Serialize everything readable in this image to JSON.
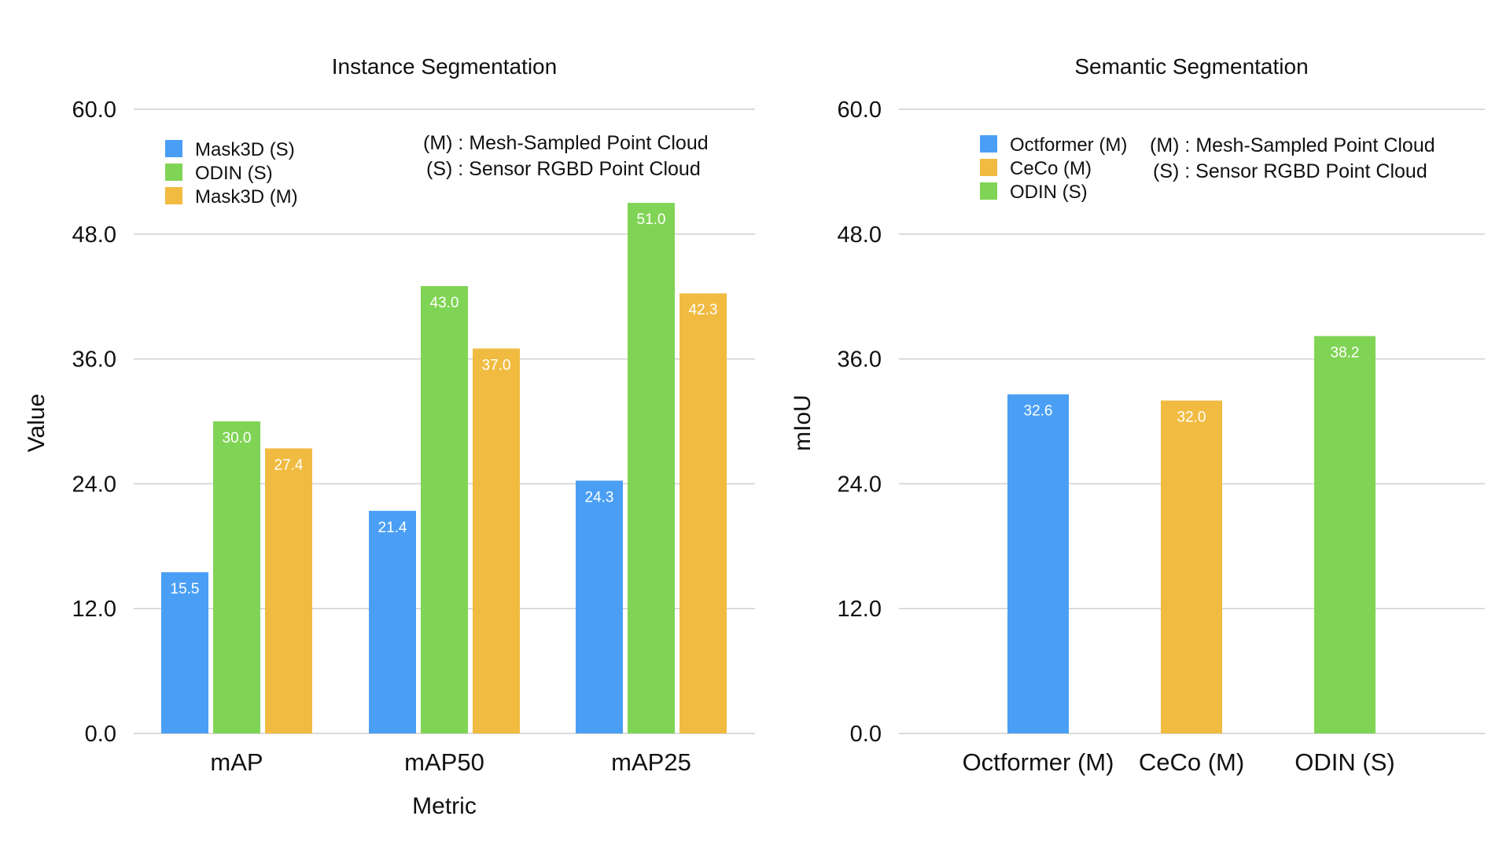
{
  "colors": {
    "blue": "#4a9ff5",
    "green": "#80d455",
    "orange": "#f0bb40",
    "grid": "#cfcfcf",
    "text": "#111111",
    "label": "#ffffff"
  },
  "chart_data": [
    {
      "type": "bar",
      "title": "Instance Segmentation",
      "xlabel": "Metric",
      "ylabel": "Value",
      "ylim": [
        0,
        60
      ],
      "yticks": [
        "0.0",
        "12.0",
        "24.0",
        "36.0",
        "48.0",
        "60.0"
      ],
      "grid": true,
      "legend_position": "top-left",
      "categories": [
        "mAP",
        "mAP50",
        "mAP25"
      ],
      "series": [
        {
          "name": "Mask3D (S)",
          "color": "#4a9ff5",
          "values": [
            15.5,
            21.4,
            24.3
          ],
          "labels": [
            "15.5",
            "21.4",
            "24.3"
          ]
        },
        {
          "name": "ODIN (S)",
          "color": "#80d455",
          "values": [
            30.0,
            43.0,
            51.0
          ],
          "labels": [
            "30.0",
            "43.0",
            "51.0"
          ]
        },
        {
          "name": "Mask3D (M)",
          "color": "#f0bb40",
          "values": [
            27.4,
            37.0,
            42.3
          ],
          "labels": [
            "27.4",
            "37.0",
            "42.3"
          ]
        }
      ],
      "annotations": [
        "(M) : Mesh-Sampled Point Cloud",
        "(S) : Sensor RGBD Point Cloud"
      ]
    },
    {
      "type": "bar",
      "title": "Semantic Segmentation",
      "xlabel": "",
      "ylabel": "mIoU",
      "ylim": [
        0,
        60
      ],
      "yticks": [
        "0.0",
        "12.0",
        "24.0",
        "36.0",
        "48.0",
        "60.0"
      ],
      "grid": true,
      "legend_position": "top-left",
      "categories": [
        "Octformer (M)",
        "CeCo (M)",
        "ODIN (S)"
      ],
      "series": [
        {
          "name": "Octformer (M)",
          "color": "#4a9ff5",
          "values": [
            32.6,
            null,
            null
          ],
          "labels": [
            "32.6",
            "",
            ""
          ]
        },
        {
          "name": "CeCo (M)",
          "color": "#f0bb40",
          "values": [
            null,
            32.0,
            null
          ],
          "labels": [
            "",
            "32.0",
            ""
          ]
        },
        {
          "name": "ODIN (S)",
          "color": "#80d455",
          "values": [
            null,
            null,
            38.2
          ],
          "labels": [
            "",
            "",
            "38.2"
          ]
        }
      ],
      "annotations": [
        "(M) : Mesh-Sampled Point Cloud",
        "(S) : Sensor RGBD Point Cloud"
      ]
    }
  ]
}
